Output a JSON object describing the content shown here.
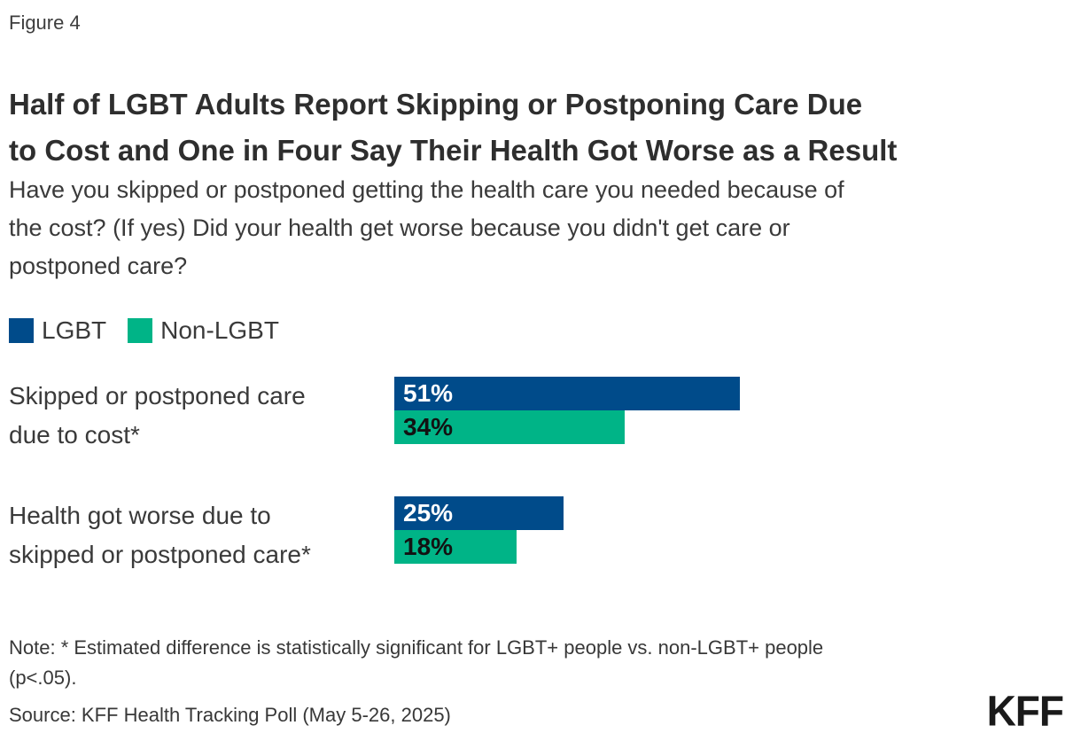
{
  "figure_label": "Figure 4",
  "title": "Half of LGBT Adults Report Skipping or Postponing Care Due\nto Cost and One in Four Say Their Health Got Worse as a Result",
  "subtitle": "Have you skipped or postponed getting the health care you needed because of\nthe cost? (If yes) Did your health get worse because you didn't get care or\npostponed care?",
  "chart_data": {
    "type": "bar",
    "orientation": "horizontal",
    "title": "Half of LGBT Adults Report Skipping or Postponing Care Due to Cost and One in Four Say Their Health Got Worse as a Result",
    "categories": [
      "Skipped or postponed care\ndue to cost*",
      "Health got worse due to\nskipped or postponed care*"
    ],
    "series": [
      {
        "name": "LGBT",
        "color": "#004b8a",
        "values": [
          51,
          25
        ]
      },
      {
        "name": "Non-LGBT",
        "color": "#00b487",
        "values": [
          34,
          18
        ]
      }
    ],
    "value_suffix": "%",
    "xlim": [
      0,
      100
    ],
    "grid": false,
    "legend_position": "top-left",
    "value_labels": [
      "51%",
      "34%",
      "25%",
      "18%"
    ]
  },
  "note": "Note: * Estimated difference is statistically significant for LGBT+ people vs. non-LGBT+ people\n(p<.05).",
  "source": "Source: KFF Health Tracking Poll (May 5-26, 2025)",
  "logo_text": "KFF"
}
